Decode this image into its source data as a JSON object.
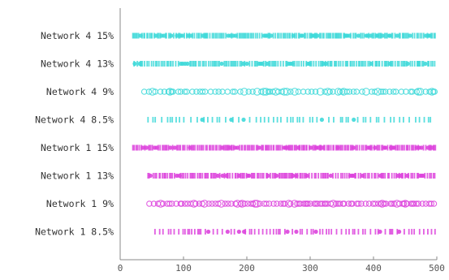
{
  "chart_data": {
    "type": "scatter",
    "title": "",
    "xlabel": "",
    "ylabel": "",
    "xlim": [
      0,
      500
    ],
    "xticks": [
      "0",
      "100",
      "200",
      "300",
      "400",
      "500"
    ],
    "grid": false,
    "legend": "none",
    "series": [
      {
        "name": "Network 4 15%",
        "color": "#3fd9d9",
        "marker": "filled",
        "start": 20,
        "end": 498,
        "density": 1.0
      },
      {
        "name": "Network 4 13%",
        "color": "#3fd9d9",
        "marker": "filled",
        "start": 22,
        "end": 498,
        "density": 0.9
      },
      {
        "name": "Network 4 9%",
        "color": "#3fd9d9",
        "marker": "open",
        "start": 38,
        "end": 498,
        "density": 0.45
      },
      {
        "name": "Network 4 8.5%",
        "color": "#3fd9d9",
        "marker": "filled",
        "start": 44,
        "end": 498,
        "density": 0.35
      },
      {
        "name": "Network 1 15%",
        "color": "#dd44dd",
        "marker": "filled",
        "start": 20,
        "end": 498,
        "density": 1.0
      },
      {
        "name": "Network 1 13%",
        "color": "#dd44dd",
        "marker": "filled",
        "start": 44,
        "end": 498,
        "density": 0.85
      },
      {
        "name": "Network 1 9%",
        "color": "#dd44dd",
        "marker": "open",
        "start": 46,
        "end": 498,
        "density": 0.55
      },
      {
        "name": "Network 1 8.5%",
        "color": "#dd44dd",
        "marker": "filled",
        "start": 55,
        "end": 498,
        "density": 0.45
      }
    ]
  }
}
